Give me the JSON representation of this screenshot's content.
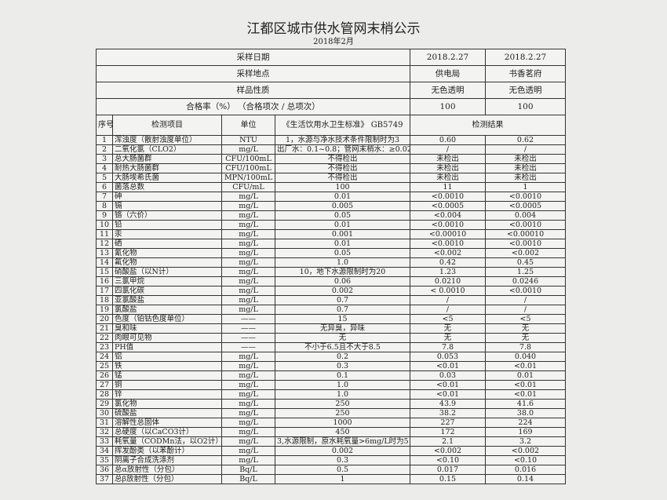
{
  "header": {
    "title": "江都区城市供水管网末梢公示",
    "subtitle": "2018年2月"
  },
  "sample_info": [
    [
      "采样日期",
      "2018.2.27",
      "2018.2.27"
    ],
    [
      "采样地点",
      "供电局",
      "书香茗府"
    ],
    [
      "样品性质",
      "无色透明",
      "无色透明"
    ],
    [
      "合格率（%） （合格项次 / 总项次）",
      "100",
      "100"
    ]
  ],
  "table": {
    "columns": [
      "序号",
      "检测项目",
      "单位",
      "《生活饮用水卫生标准》 GB5749",
      "检测结果"
    ],
    "rows": [
      [
        "1",
        "浑浊度（散射浊度单位）",
        "NTU",
        "1，水源与净水技术条件限制时为3",
        "0.60",
        "0.62"
      ],
      [
        "2",
        "二氧化氯（CLO2）",
        "mg/L",
        "出厂水：0.1~0.8；管网末梢水：≥0.02",
        "/",
        "/"
      ],
      [
        "3",
        "总大肠菌群",
        "CFU/100mL",
        "不得检出",
        "未检出",
        "未检出"
      ],
      [
        "4",
        "耐热大肠菌群",
        "CFU/100mL",
        "不得检出",
        "未检出",
        "未检出"
      ],
      [
        "5",
        "大肠埃希氏菌",
        "MPN/100mL",
        "不得检出",
        "未检出",
        "未检出"
      ],
      [
        "6",
        "菌落总数",
        "CFU/mL",
        "100",
        "11",
        "1"
      ],
      [
        "7",
        "砷",
        "mg/L",
        "0.01",
        "<0.0010",
        "<0.0010"
      ],
      [
        "8",
        "镉",
        "mg/L",
        "0.005",
        "<0.0005",
        "<0.0005"
      ],
      [
        "9",
        "铬（六价）",
        "mg/L",
        "0.05",
        "<0.004",
        "0.004"
      ],
      [
        "10",
        "铅",
        "mg/L",
        "0.01",
        "<0.0010",
        "<0.0010"
      ],
      [
        "11",
        "汞",
        "mg/L",
        "0.001",
        "<0.00010",
        "<0.00010"
      ],
      [
        "12",
        "硒",
        "mg/L",
        "0.01",
        "<0.0010",
        "<0.0010"
      ],
      [
        "13",
        "氰化物",
        "mg/L",
        "0.05",
        "<0.002",
        "<0.002"
      ],
      [
        "14",
        "氟化物",
        "mg/L",
        "1.0",
        "0.42",
        "0.45"
      ],
      [
        "15",
        "硝酸盐（以N计）",
        "mg/L",
        "10，地下水源限制时为20",
        "1.23",
        "1.25"
      ],
      [
        "16",
        "三氯甲烷",
        "mg/L",
        "0.06",
        "0.0210",
        "0.0246"
      ],
      [
        "17",
        "四氯化碳",
        "mg/L",
        "0.002",
        "< 0.0010",
        "<0.0010"
      ],
      [
        "18",
        "亚氯酸盐",
        "mg/L",
        "0.7",
        "/",
        "/"
      ],
      [
        "19",
        "氯酸盐",
        "mg/L",
        "0.7",
        "/",
        "/"
      ],
      [
        "20",
        "色度（铂钴色度单位）",
        "——",
        "15",
        "<5",
        "<5"
      ],
      [
        "21",
        "臭和味",
        "——",
        "无异臭，异味",
        "无",
        "无"
      ],
      [
        "22",
        "肉眼可见物",
        "——",
        "无",
        "无",
        "无"
      ],
      [
        "23",
        "PH值",
        "——",
        "不小于6.5且不大于8.5",
        "7.8",
        "7.8"
      ],
      [
        "24",
        "铝",
        "mg/L",
        "0.2",
        "0.053",
        "0.040"
      ],
      [
        "25",
        "铁",
        "mg/L",
        "0.3",
        "<0.01",
        "<0.01"
      ],
      [
        "26",
        "锰",
        "mg/L",
        "0.1",
        "0.03",
        "0.01"
      ],
      [
        "27",
        "铜",
        "mg/L",
        "1.0",
        "<0.01",
        "<0.01"
      ],
      [
        "28",
        "锌",
        "mg/L",
        "1.0",
        "<0.01",
        "<0.01"
      ],
      [
        "29",
        "氯化物",
        "mg/L",
        "250",
        "43.9",
        "41.6"
      ],
      [
        "30",
        "硫酸盐",
        "mg/L",
        "250",
        "38.2",
        "38.0"
      ],
      [
        "31",
        "溶解性总固体",
        "mg/L",
        "1000",
        "227",
        "224"
      ],
      [
        "32",
        "总硬度（以CaCO3计）",
        "mg/L",
        "450",
        "172",
        "169"
      ],
      [
        "33",
        "耗氧量（CODMn法，以O2计）",
        "mg/L",
        "3,水源限制，原水耗氧量>6mg/L时为5",
        "2.1",
        "3.2"
      ],
      [
        "34",
        "挥发酚类（以苯酚计）",
        "mg/L",
        "0.002",
        "<0.002",
        "<0.002"
      ],
      [
        "35",
        "阴离子合成洗涤剂",
        "mg/L",
        "0.3",
        "<0.10",
        "<0.10"
      ],
      [
        "36",
        "总α放射性（分包）",
        "Bq/L",
        "0.5",
        "0.017",
        "0.016"
      ],
      [
        "37",
        "总β放射性（分包）",
        "Bq/L",
        "1",
        "0.15",
        "0.14"
      ]
    ]
  }
}
